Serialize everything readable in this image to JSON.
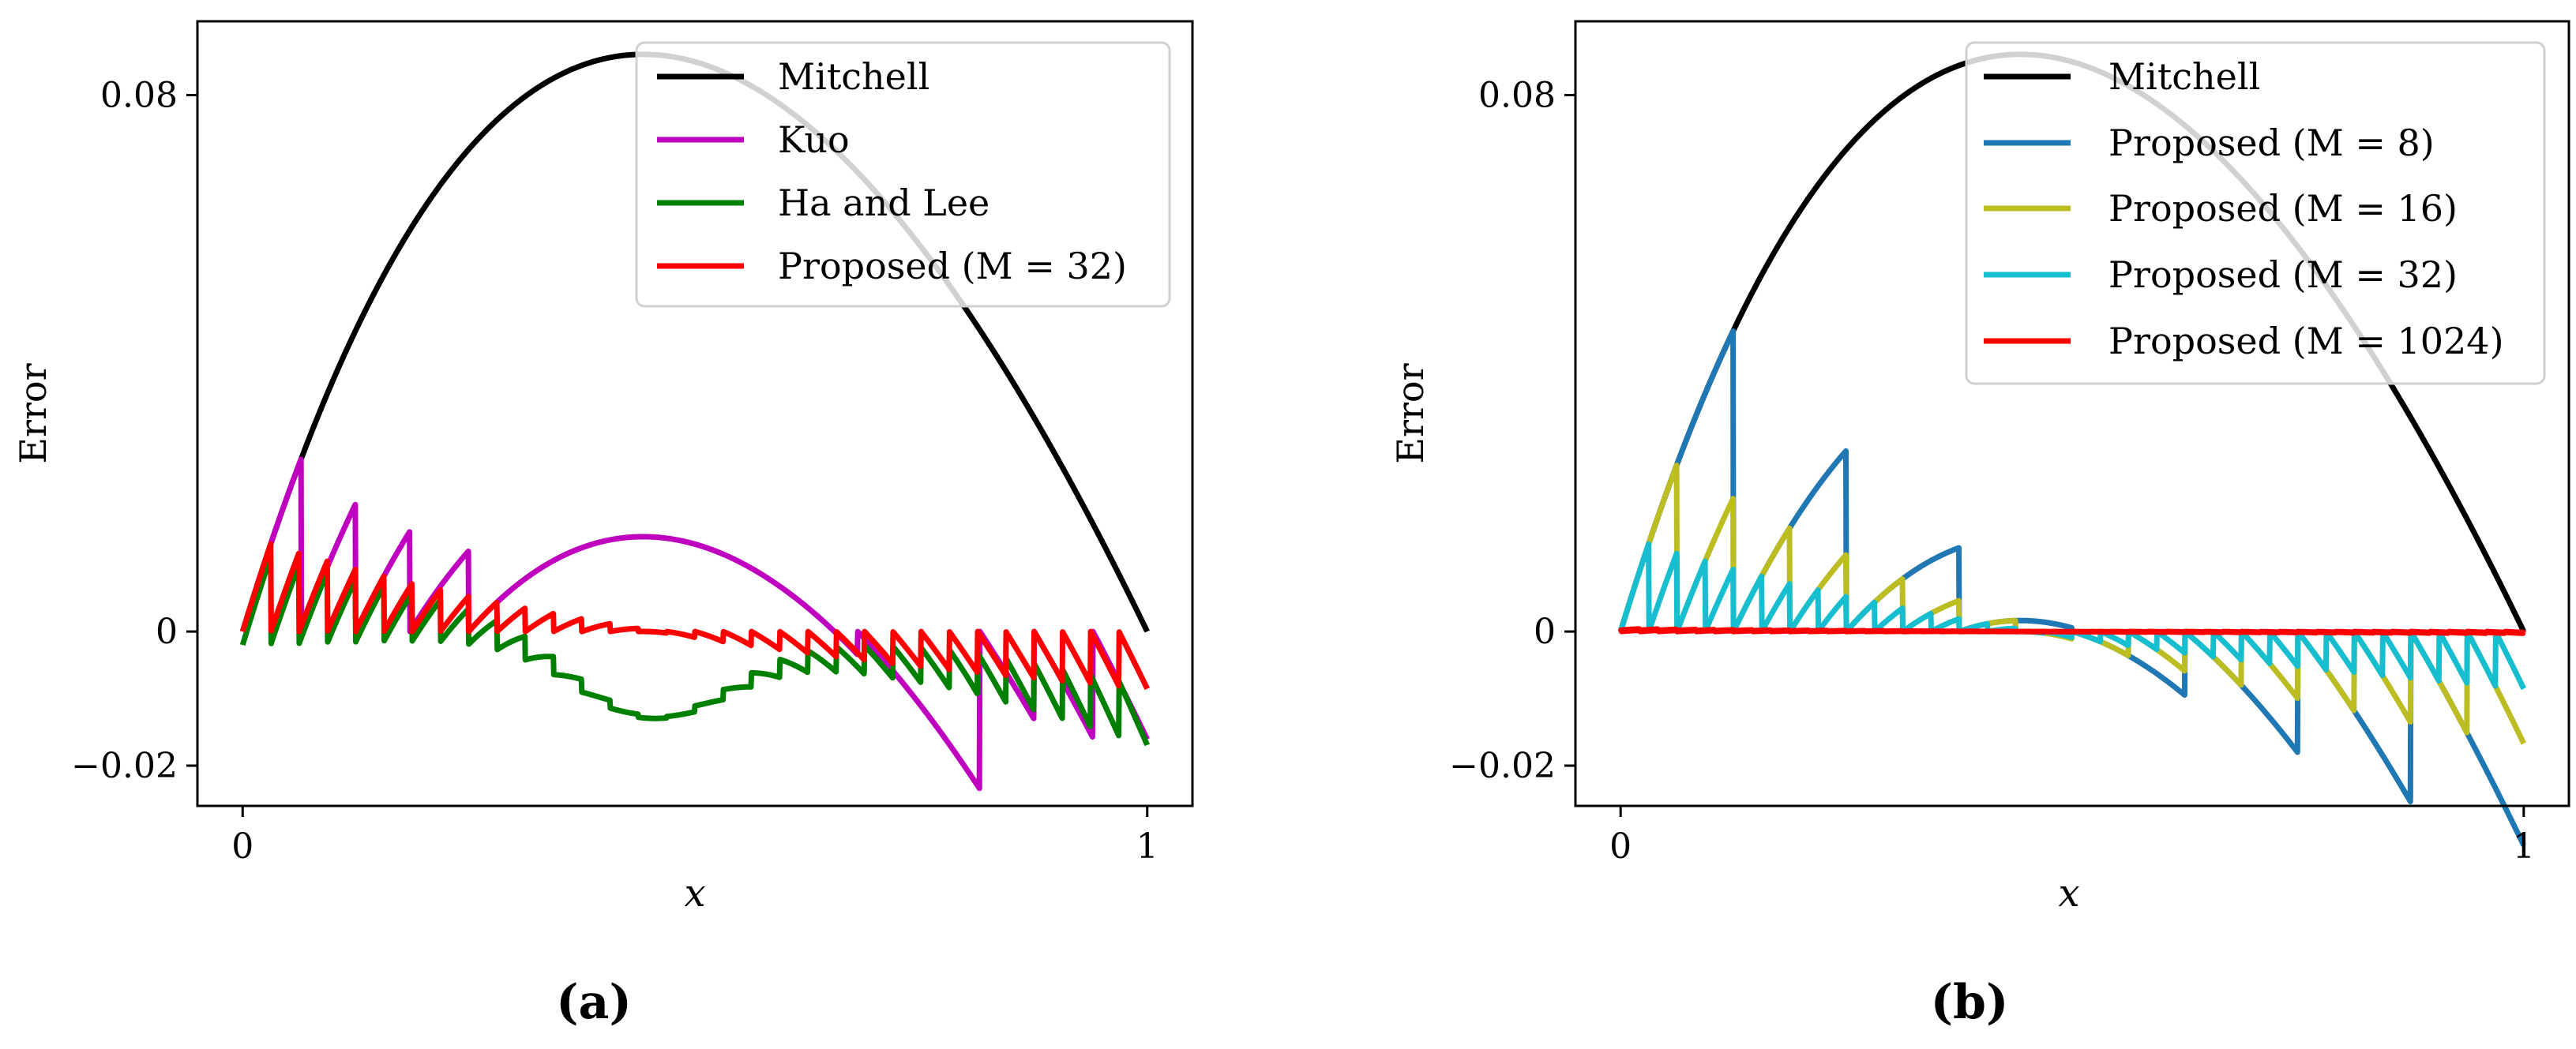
{
  "chart_data": [
    {
      "id": "a",
      "type": "line",
      "caption": "(a)",
      "xlabel": "x",
      "ylabel": "Error",
      "xlim": [
        -0.05,
        1.05
      ],
      "ylim": [
        -0.026,
        0.091
      ],
      "xticks": [
        {
          "value": 0,
          "label": "0"
        },
        {
          "value": 1,
          "label": "1"
        }
      ],
      "yticks": [
        {
          "value": -0.02,
          "label": "−0.02"
        },
        {
          "value": 0,
          "label": "0"
        },
        {
          "value": 0.08,
          "label": "0.08"
        }
      ],
      "legend_position": "top-right",
      "series": [
        {
          "name": "Mitchell",
          "color": "#000000",
          "kind": "mitchell"
        },
        {
          "name": "Kuo",
          "color": "#bf00bf",
          "kind": "kuo"
        },
        {
          "name": "Ha and Lee",
          "color": "#008000",
          "kind": "halee"
        },
        {
          "name": "Proposed (M = 32)",
          "color": "#ff0000",
          "kind": "proposed",
          "M": 32
        }
      ]
    },
    {
      "id": "b",
      "type": "line",
      "caption": "(b)",
      "xlabel": "x",
      "ylabel": "Error",
      "xlim": [
        -0.05,
        1.05
      ],
      "ylim": [
        -0.026,
        0.091
      ],
      "xticks": [
        {
          "value": 0,
          "label": "0"
        },
        {
          "value": 1,
          "label": "1"
        }
      ],
      "yticks": [
        {
          "value": -0.02,
          "label": "−0.02"
        },
        {
          "value": 0,
          "label": "0"
        },
        {
          "value": 0.08,
          "label": "0.08"
        }
      ],
      "legend_position": "top-right",
      "series": [
        {
          "name": "Mitchell",
          "color": "#000000",
          "kind": "mitchell"
        },
        {
          "name": "Proposed (M = 8)",
          "color": "#1f77b4",
          "kind": "proposed",
          "M": 8
        },
        {
          "name": "Proposed (M = 16)",
          "color": "#bcbd22",
          "kind": "proposed",
          "M": 16
        },
        {
          "name": "Proposed (M = 32)",
          "color": "#17becf",
          "kind": "proposed",
          "M": 32
        },
        {
          "name": "Proposed (M = 1024)",
          "color": "#ff0000",
          "kind": "proposed",
          "M": 1024
        }
      ]
    }
  ]
}
